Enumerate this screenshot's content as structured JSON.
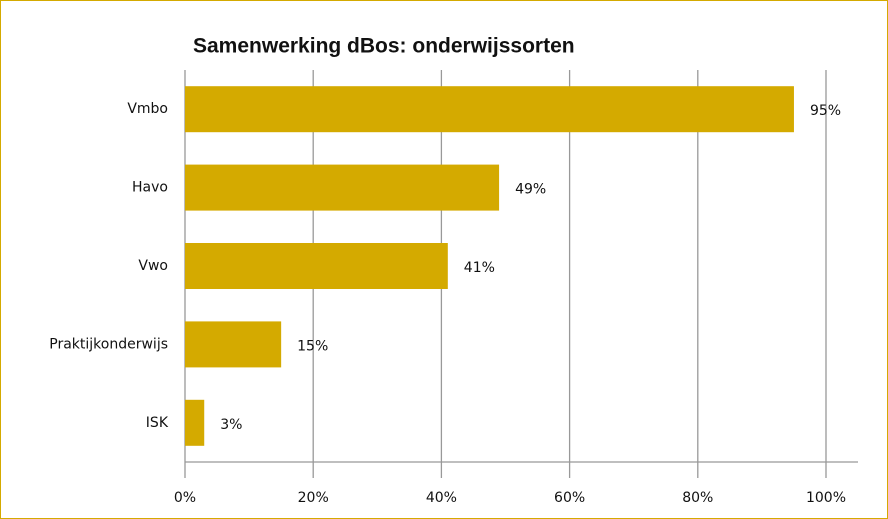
{
  "chart_data": {
    "type": "bar",
    "orientation": "horizontal",
    "title": "Samenwerking dBos: onderwijssorten",
    "categories": [
      "Vmbo",
      "Havo",
      "Vwo",
      "Praktijkonderwijs",
      "ISK"
    ],
    "values": [
      95,
      49,
      41,
      15,
      3
    ],
    "value_labels": [
      "95%",
      "49%",
      "41%",
      "15%",
      "3%"
    ],
    "color": "#d4aa00",
    "xlim": [
      0,
      100
    ],
    "xticks": [
      {
        "value": 0,
        "label": "0%"
      },
      {
        "value": 20,
        "label": "20%"
      },
      {
        "value": 40,
        "label": "40%"
      },
      {
        "value": 60,
        "label": "60%"
      },
      {
        "value": 80,
        "label": "80%"
      },
      {
        "value": 100,
        "label": "100%"
      }
    ],
    "grid": true
  }
}
